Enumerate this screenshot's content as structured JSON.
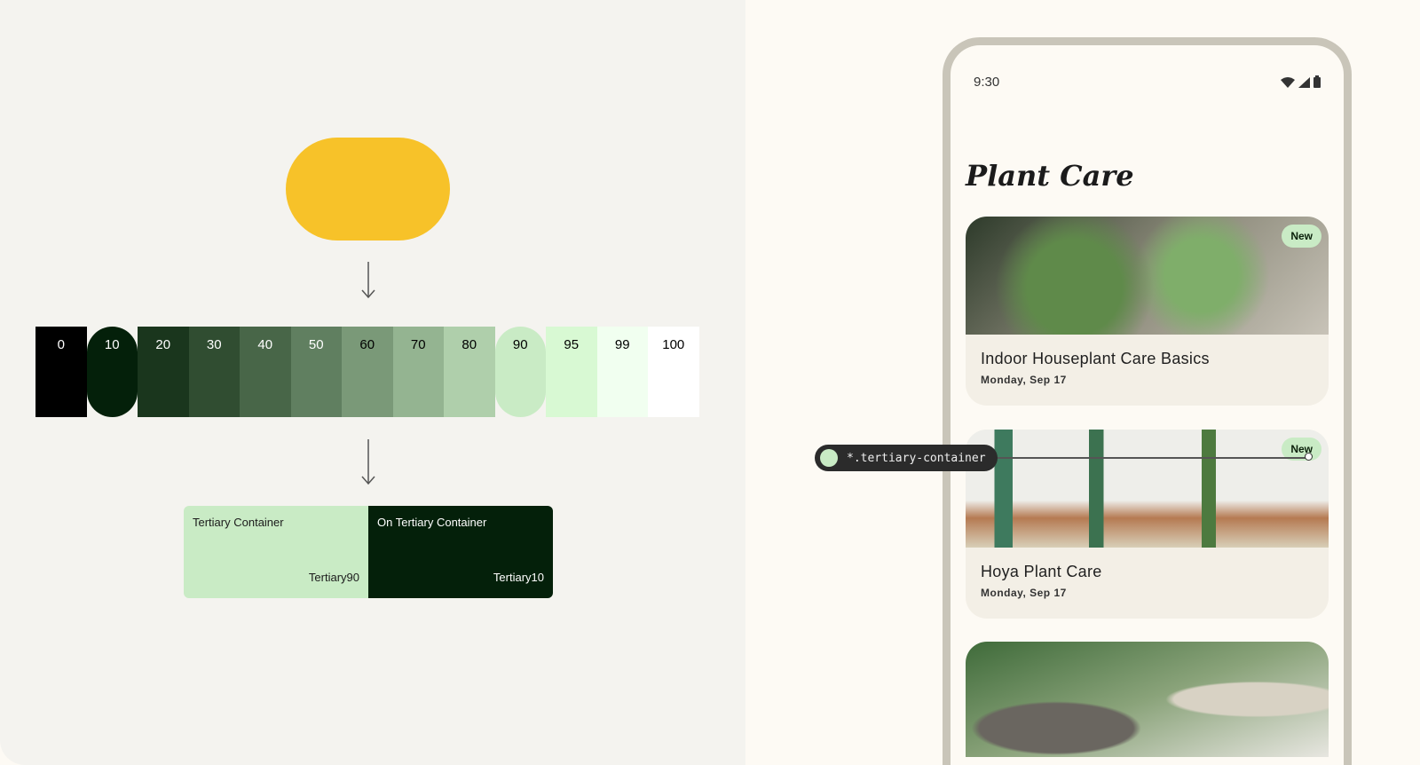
{
  "seed_color": "#F7C229",
  "palette": {
    "tones": [
      {
        "label": "0",
        "color": "#000000",
        "text": "#ffffff"
      },
      {
        "label": "10",
        "color": "#04200a",
        "text": "#ffffff",
        "highlight": true
      },
      {
        "label": "20",
        "color": "#1a361d",
        "text": "#ffffff"
      },
      {
        "label": "30",
        "color": "#304d31",
        "text": "#ffffff"
      },
      {
        "label": "40",
        "color": "#486648",
        "text": "#ffffff"
      },
      {
        "label": "50",
        "color": "#607f60",
        "text": "#ffffff"
      },
      {
        "label": "60",
        "color": "#7a9978",
        "text": "#000000"
      },
      {
        "label": "70",
        "color": "#94b491",
        "text": "#000000"
      },
      {
        "label": "80",
        "color": "#afcfab",
        "text": "#000000"
      },
      {
        "label": "90",
        "color": "#c9ebc5",
        "text": "#000000",
        "highlight": true
      },
      {
        "label": "95",
        "color": "#d8f9d3",
        "text": "#000000"
      },
      {
        "label": "99",
        "color": "#f1fff0",
        "text": "#000000"
      },
      {
        "label": "100",
        "color": "#ffffff",
        "text": "#000000"
      }
    ]
  },
  "roles": [
    {
      "name": "Tertiary Container",
      "tone": "Tertiary90",
      "color": "#c9ebc5",
      "text": "#1b1b1b"
    },
    {
      "name": "On Tertiary Container",
      "tone": "Tertiary10",
      "color": "#04200a",
      "text": "#ffffff"
    }
  ],
  "phone": {
    "time": "9:30",
    "status_icons": [
      "wifi-icon",
      "signal-icon",
      "battery-icon"
    ],
    "title": "Plant Care",
    "cards": [
      {
        "title": "Indoor Houseplant Care Basics",
        "date": "Monday, Sep 17",
        "badge": "New"
      },
      {
        "title": "Hoya Plant Care",
        "date": "Monday, Sep 17",
        "badge": "New"
      },
      {
        "title": "",
        "date": ""
      }
    ]
  },
  "annotation": {
    "label": "*.tertiary-container",
    "color": "#c9ebc5"
  }
}
